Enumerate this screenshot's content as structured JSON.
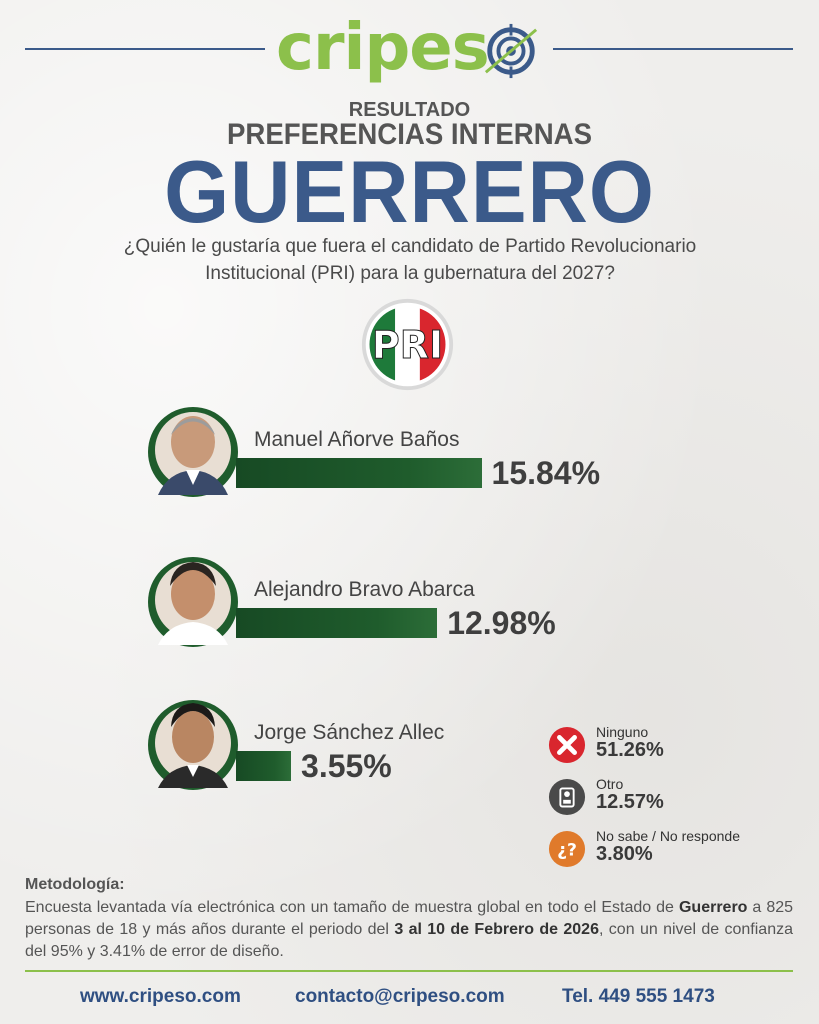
{
  "header": {
    "logo_text_green": "cripes",
    "logo_text_blue": "",
    "result": "RESULTADO",
    "subtitle": "PREFERENCIAS INTERNAS",
    "state": "GUERRERO",
    "question_line1": "¿Quién le gustaría que fuera el candidato de Partido Revolucionario",
    "question_line2": "Institucional (PRI) para la gubernatura del 2027?",
    "party_logo": "PRI"
  },
  "colors": {
    "brand_blue": "#3b5a8a",
    "brand_green": "#8cc04b",
    "bar_green": "#1f5c2c",
    "red": "#d9262e",
    "orange": "#e07a2b",
    "dark": "#4a4a4a"
  },
  "chart_data": {
    "type": "bar",
    "orientation": "horizontal",
    "categories": [
      "Manuel Añorve Baños",
      "Alejandro Bravo Abarca",
      "Jorge Sánchez Allec"
    ],
    "values": [
      15.84,
      12.98,
      3.55
    ],
    "value_labels": [
      "15.84%",
      "12.98%",
      "3.55%"
    ],
    "unit": "%",
    "other_responses": [
      {
        "label": "Ninguno",
        "value": 51.26,
        "value_label": "51.26%",
        "icon": "x-icon"
      },
      {
        "label": "Otro",
        "value": 12.57,
        "value_label": "12.57%",
        "icon": "ballot-icon"
      },
      {
        "label": "No sabe / No responde",
        "value": 3.8,
        "value_label": "3.80%",
        "icon": "question-icon"
      }
    ]
  },
  "methodology": {
    "title": "Metodología:",
    "p1": "Encuesta levantada vía electrónica con un tamaño de muestra global en todo el Estado de",
    "state_bold": "Guerrero",
    "p2": " a 825 personas de 18 y más años durante el periodo del ",
    "dates_bold": "3 al 10 de Febrero de 2026",
    "p3": ",",
    "p4": "con un nivel de confianza del 95% y 3.41% de error de diseño."
  },
  "footer": {
    "website": "www.cripeso.com",
    "email": "contacto@cripeso.com",
    "phone": "Tel. 449 555 1473"
  }
}
